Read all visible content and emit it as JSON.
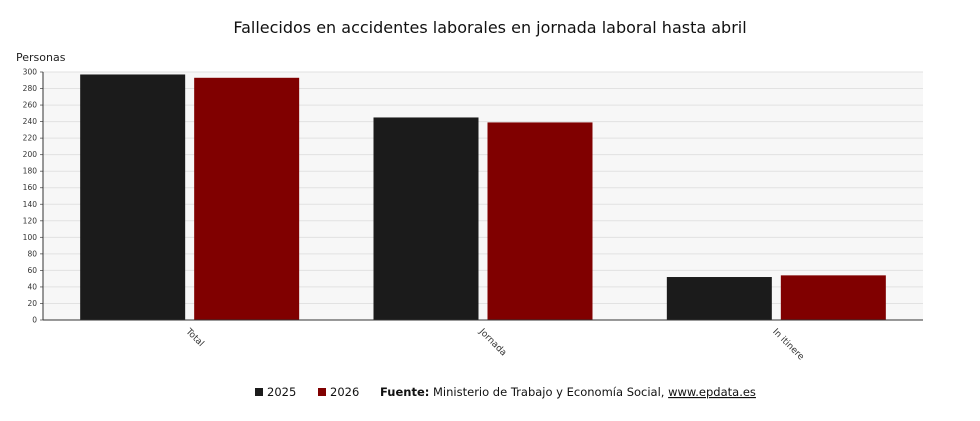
{
  "chart_data": {
    "type": "bar",
    "title": "Fallecidos en accidentes laborales en jornada laboral hasta abril",
    "ylabel": "Personas",
    "xlabel": "",
    "categories": [
      "Total",
      "Jornada",
      "In itinere"
    ],
    "series": [
      {
        "name": "2025",
        "values": [
          297,
          245,
          52
        ],
        "color": "#1b1b1b"
      },
      {
        "name": "2026",
        "values": [
          293,
          239,
          54
        ],
        "color": "#800000"
      }
    ],
    "ylim": [
      0,
      300
    ],
    "ytick_step": 20,
    "grid": true,
    "legend_position": "bottom"
  },
  "footer": {
    "source_label": "Fuente:",
    "source_text": " Ministerio de Trabajo y Economía Social, ",
    "source_link": "www.epdata.es"
  }
}
